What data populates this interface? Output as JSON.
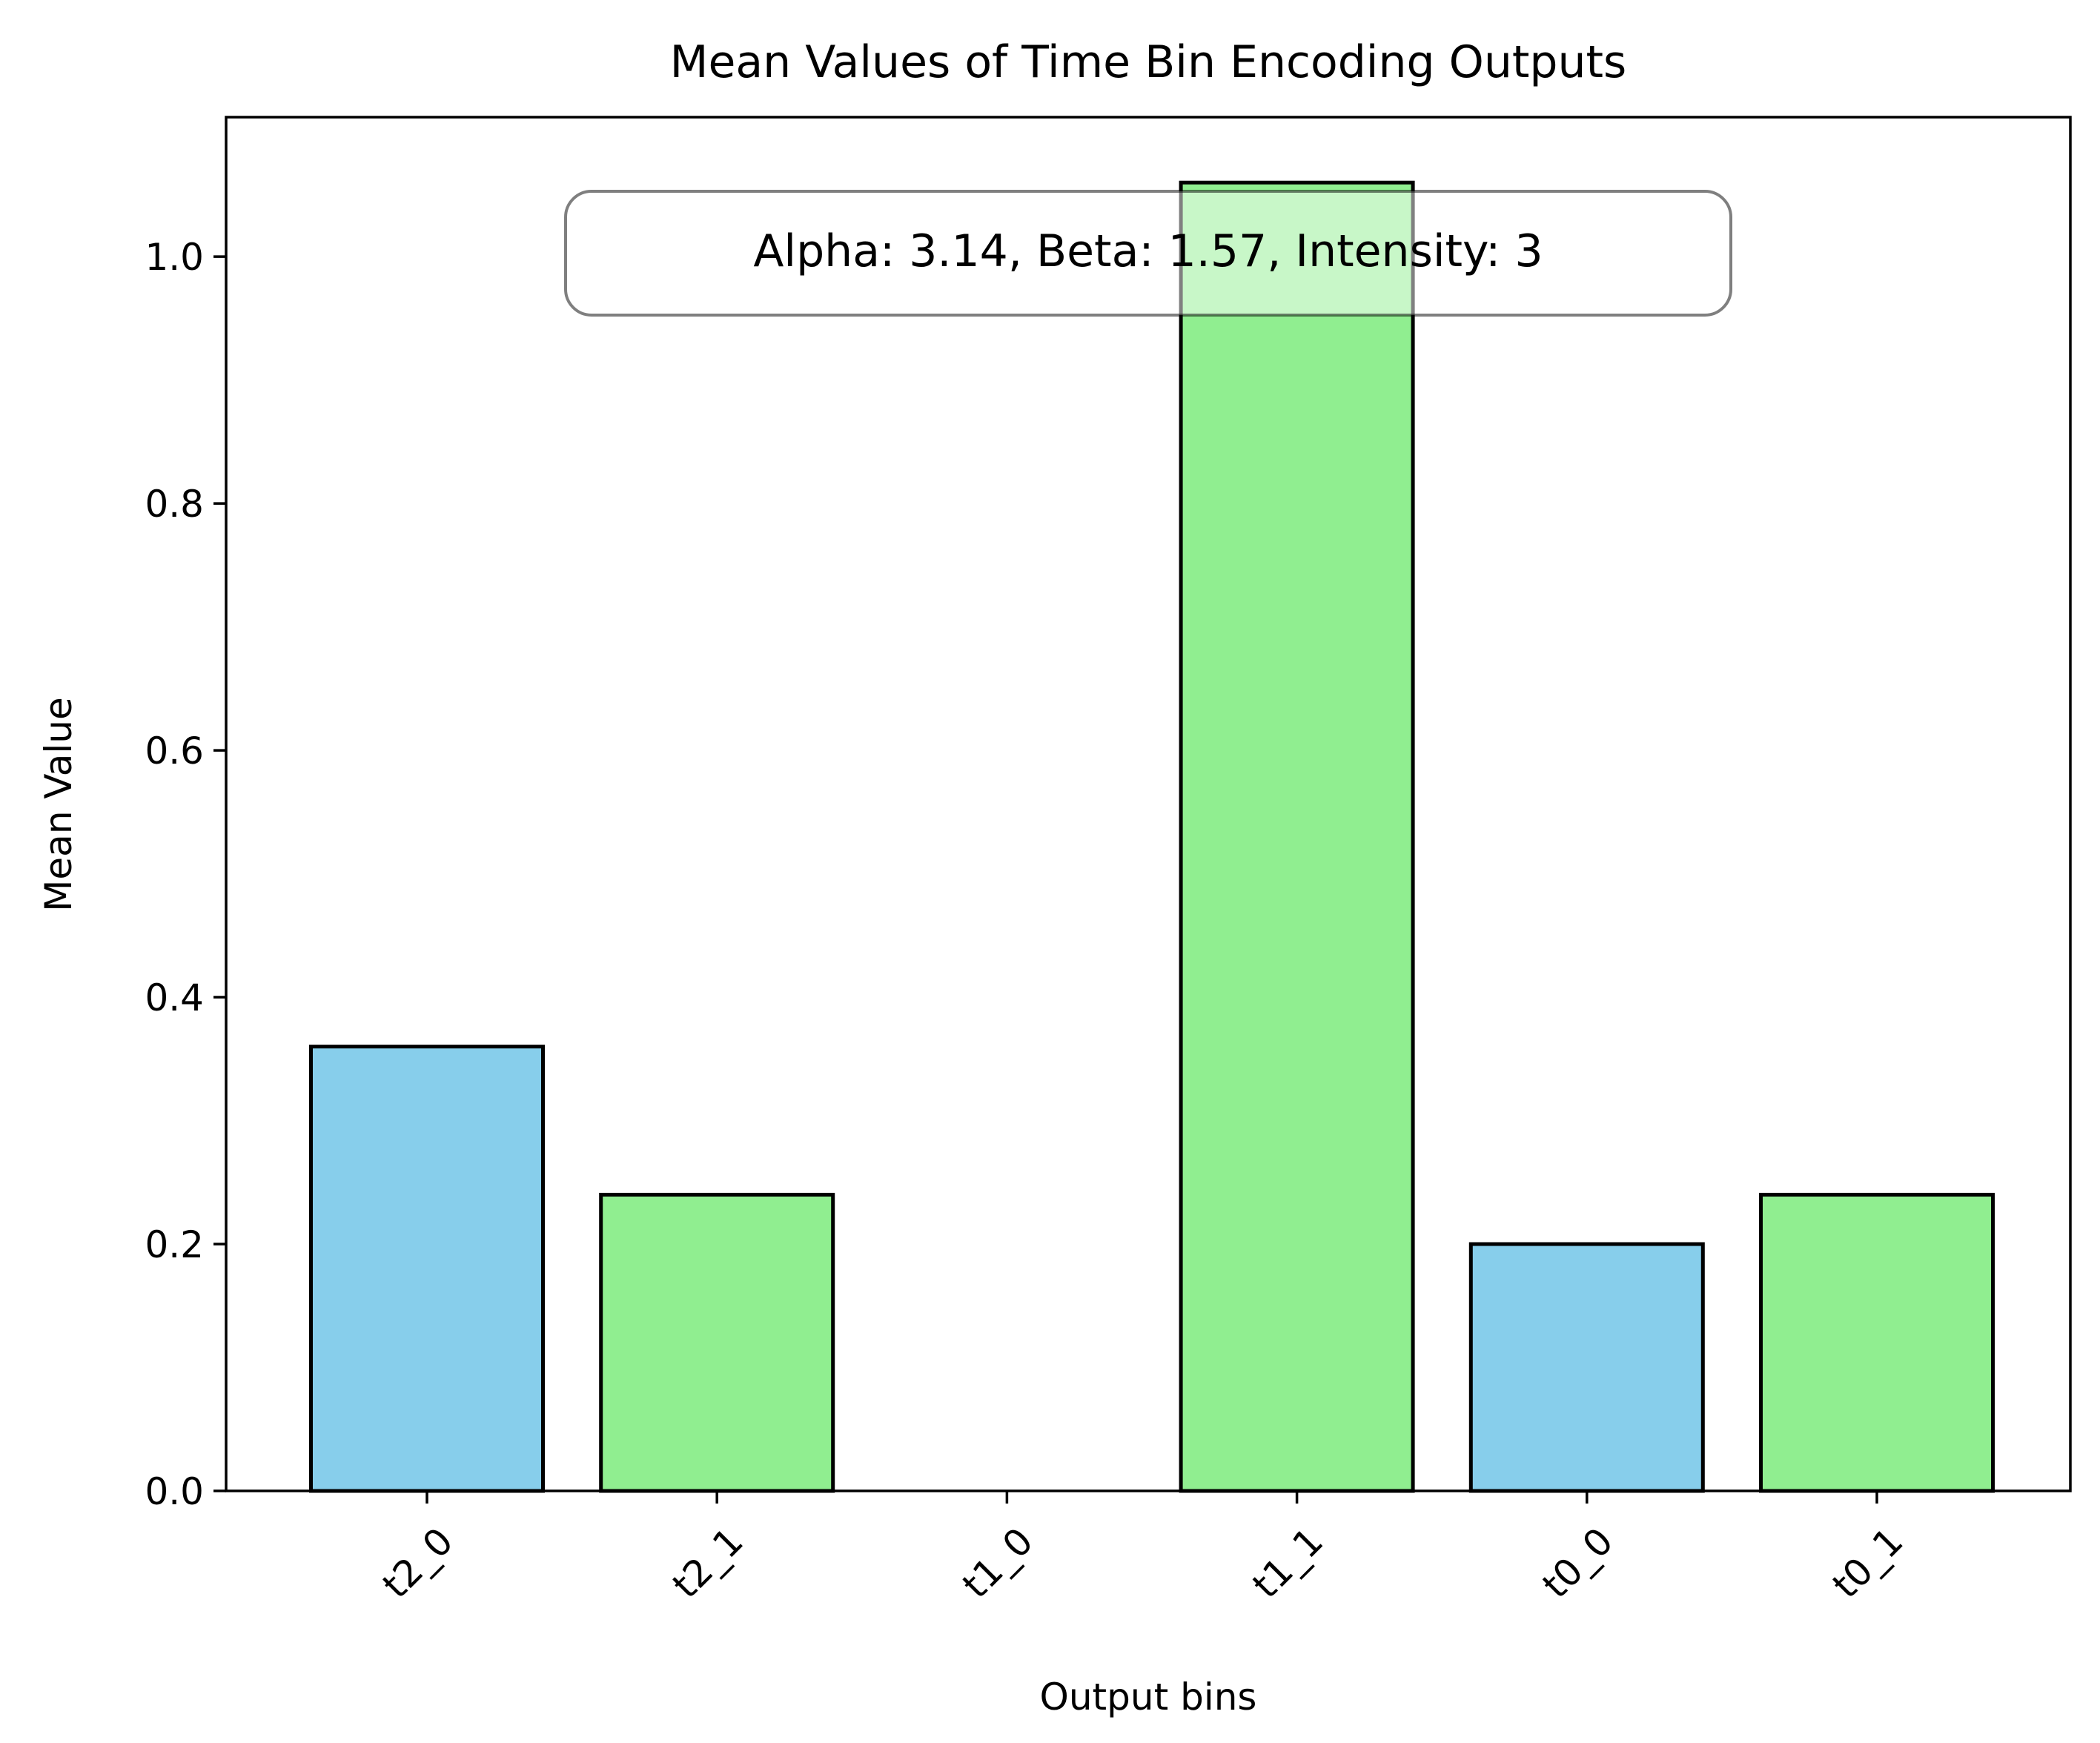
{
  "chart_data": {
    "type": "bar",
    "title": "Mean Values of Time Bin Encoding Outputs",
    "xlabel": "Output bins",
    "ylabel": "Mean Value",
    "categories": [
      "t2_0",
      "t2_1",
      "t1_0",
      "t1_1",
      "t0_0",
      "t0_1"
    ],
    "values": [
      0.36,
      0.24,
      0.0,
      1.06,
      0.2,
      0.24
    ],
    "bar_colors": [
      "#87ceeb",
      "#90ee90",
      "#87ceeb",
      "#90ee90",
      "#87ceeb",
      "#90ee90"
    ],
    "edge_color": "#000000",
    "ylim": [
      0,
      1.113
    ],
    "yticks": [
      0.0,
      0.2,
      0.4,
      0.6,
      0.8,
      1.0
    ],
    "ytick_labels": [
      "0.0",
      "0.2",
      "0.4",
      "0.6",
      "0.8",
      "1.0"
    ],
    "x_tick_rotation": "45 degrees",
    "grid": false,
    "annotation": "Alpha: 3.14, Beta: 1.57, Intensity: 3"
  }
}
